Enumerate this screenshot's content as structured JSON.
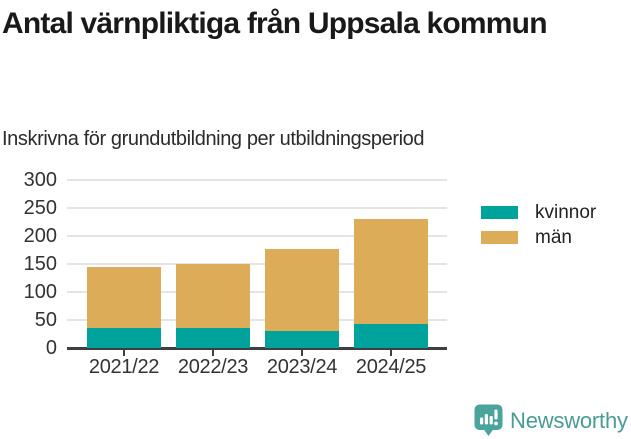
{
  "title": "Antal värnpliktiga från Uppsala kommun",
  "subtitle": "Inskrivna för grundutbildning per utbildningsperiod",
  "footer": {
    "brand": "Newsworthy",
    "logo_icon": "newsworthy-speech-bubble-bar-chart-icon"
  },
  "colors": {
    "kvinnor": "#00A39B",
    "man": "#DCAC58",
    "axis": "#3f3f3f",
    "grid": "#e4e4e4",
    "title_text": "#191919",
    "label_text": "#333333",
    "brand_teal": "#4a9b94"
  },
  "chart_data": {
    "type": "bar",
    "stacked": true,
    "title": "Antal värnpliktiga från Uppsala kommun",
    "subtitle": "Inskrivna för grundutbildning per utbildningsperiod",
    "categories": [
      "2021/22",
      "2022/23",
      "2023/24",
      "2024/25"
    ],
    "series": [
      {
        "name": "kvinnor",
        "color": "#00A39B",
        "values": [
          35,
          36,
          30,
          43
        ]
      },
      {
        "name": "män",
        "color": "#DCAC58",
        "values": [
          110,
          114,
          146,
          187
        ]
      }
    ],
    "totals": [
      145,
      150,
      176,
      230
    ],
    "xlabel": "",
    "ylabel": "",
    "ylim": [
      0,
      300
    ],
    "yticks": [
      0,
      50,
      100,
      150,
      200,
      250,
      300
    ],
    "grid": true,
    "legend_position": "right"
  }
}
